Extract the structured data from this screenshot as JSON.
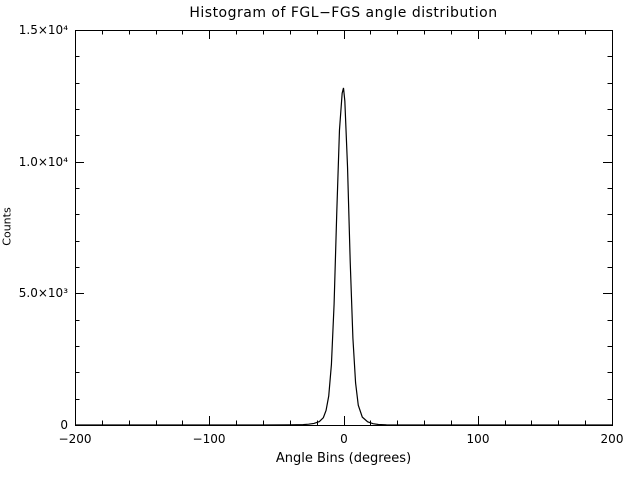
{
  "figure": {
    "background": "#ffffff",
    "line_color": "#000000"
  },
  "chart_data": {
    "type": "line",
    "title": "Histogram of FGL−FGS angle distribution",
    "xlabel": "Angle Bins (degrees)",
    "ylabel": "Counts",
    "xlim": [
      -200,
      200
    ],
    "ylim": [
      0,
      15000
    ],
    "grid": false,
    "legend": "none",
    "x_ticks": [
      {
        "value": -200,
        "label": "−200"
      },
      {
        "value": -100,
        "label": "−100"
      },
      {
        "value": 0,
        "label": "0"
      },
      {
        "value": 100,
        "label": "100"
      },
      {
        "value": 200,
        "label": "200"
      }
    ],
    "y_ticks": [
      {
        "value": 0,
        "label": "0"
      },
      {
        "value": 5000,
        "label": "5.0×10³"
      },
      {
        "value": 10000,
        "label": "1.0×10⁴"
      },
      {
        "value": 15000,
        "label": "1.5×10⁴"
      }
    ],
    "x_minor_step": 20,
    "y_minor_step": 1000,
    "peak": {
      "x": 0,
      "y": 12800
    },
    "series": [
      {
        "name": "FGL-FGS angle histogram",
        "x": [
          -200,
          -60,
          -40,
          -30,
          -26,
          -22,
          -18,
          -15,
          -13,
          -11,
          -9,
          -7,
          -5,
          -3,
          -1,
          0,
          1,
          3,
          5,
          7,
          9,
          11,
          14,
          18,
          22,
          26,
          32,
          45,
          200
        ],
        "y": [
          0,
          0,
          5,
          15,
          30,
          60,
          130,
          280,
          550,
          1100,
          2300,
          4600,
          8100,
          11200,
          12600,
          12800,
          12300,
          9800,
          6200,
          3300,
          1600,
          750,
          300,
          120,
          50,
          20,
          8,
          0,
          0
        ]
      }
    ]
  }
}
